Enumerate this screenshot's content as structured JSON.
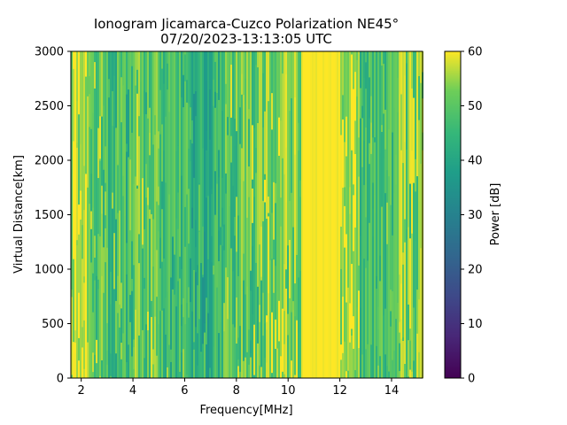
{
  "chart_data": {
    "type": "heatmap",
    "title": "Ionogram Jicamarca-Cuzco Polarization NE45°",
    "subtitle": "07/20/2023-13:13:05 UTC",
    "xlabel": "Frequency[MHz]",
    "ylabel": "Virtual Distance[km]",
    "xlim": [
      1.6,
      15.2
    ],
    "ylim": [
      0,
      3000
    ],
    "xticks": [
      2,
      4,
      6,
      8,
      10,
      12,
      14
    ],
    "yticks": [
      0,
      500,
      1000,
      1500,
      2000,
      2500,
      3000
    ],
    "colorbar": {
      "label": "Power [dB]",
      "range": [
        0,
        60
      ],
      "ticks": [
        0,
        10,
        20,
        30,
        40,
        50,
        60
      ],
      "colormap": "viridis"
    },
    "frequency_bands_mean_power_db": [
      {
        "from": 1.6,
        "to": 2.2,
        "power_db": 57
      },
      {
        "from": 2.2,
        "to": 3.0,
        "power_db": 50
      },
      {
        "from": 3.0,
        "to": 4.0,
        "power_db": 47
      },
      {
        "from": 4.0,
        "to": 5.0,
        "power_db": 50
      },
      {
        "from": 5.0,
        "to": 6.0,
        "power_db": 47
      },
      {
        "from": 6.0,
        "to": 7.5,
        "power_db": 44
      },
      {
        "from": 7.5,
        "to": 9.0,
        "power_db": 50
      },
      {
        "from": 9.0,
        "to": 10.5,
        "power_db": 53
      },
      {
        "from": 10.5,
        "to": 12.0,
        "power_db": 60
      },
      {
        "from": 12.0,
        "to": 12.8,
        "power_db": 58
      },
      {
        "from": 12.8,
        "to": 14.2,
        "power_db": 47
      },
      {
        "from": 14.2,
        "to": 15.2,
        "power_db": 52
      }
    ],
    "grid": false
  }
}
